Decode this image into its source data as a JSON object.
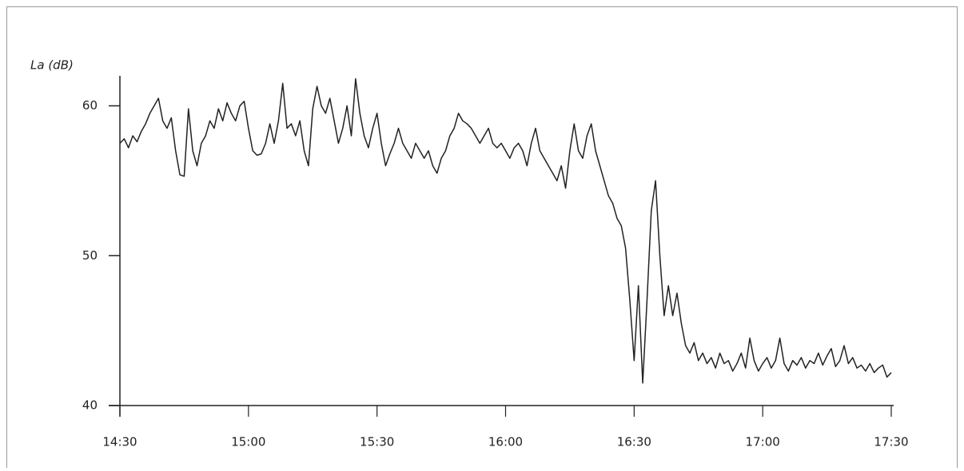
{
  "chart_data": {
    "type": "line",
    "ylabel": "La (dB)",
    "color": "#222222",
    "xlim": [
      870,
      1050
    ],
    "xticks": [
      {
        "value": 870,
        "label": "14:30"
      },
      {
        "value": 900,
        "label": "15:00"
      },
      {
        "value": 930,
        "label": "15:30"
      },
      {
        "value": 960,
        "label": "16:00"
      },
      {
        "value": 990,
        "label": "16:30"
      },
      {
        "value": 1020,
        "label": "17:00"
      },
      {
        "value": 1050,
        "label": "17:30"
      }
    ],
    "ylim": [
      40,
      62
    ],
    "yticks": [
      40,
      50,
      60
    ],
    "x": [
      870,
      871,
      872,
      873,
      874,
      875,
      876,
      877,
      878,
      879,
      880,
      881,
      882,
      883,
      884,
      885,
      886,
      887,
      888,
      889,
      890,
      891,
      892,
      893,
      894,
      895,
      896,
      897,
      898,
      899,
      900,
      901,
      902,
      903,
      904,
      905,
      906,
      907,
      908,
      909,
      910,
      911,
      912,
      913,
      914,
      915,
      916,
      917,
      918,
      919,
      920,
      921,
      922,
      923,
      924,
      925,
      926,
      927,
      928,
      929,
      930,
      931,
      932,
      933,
      934,
      935,
      936,
      937,
      938,
      939,
      940,
      941,
      942,
      943,
      944,
      945,
      946,
      947,
      948,
      949,
      950,
      951,
      952,
      953,
      954,
      955,
      956,
      957,
      958,
      959,
      960,
      961,
      962,
      963,
      964,
      965,
      966,
      967,
      968,
      969,
      970,
      971,
      972,
      973,
      974,
      975,
      976,
      977,
      978,
      979,
      980,
      981,
      982,
      983,
      984,
      985,
      986,
      987,
      988,
      989,
      990,
      991,
      992,
      993,
      994,
      995,
      996,
      997,
      998,
      999,
      1000,
      1001,
      1002,
      1003,
      1004,
      1005,
      1006,
      1007,
      1008,
      1009,
      1010,
      1011,
      1012,
      1013,
      1014,
      1015,
      1016,
      1017,
      1018,
      1019,
      1020,
      1021,
      1022,
      1023,
      1024,
      1025,
      1026,
      1027,
      1028,
      1029,
      1030,
      1031,
      1032,
      1033,
      1034,
      1035,
      1036,
      1037,
      1038,
      1039,
      1040,
      1041,
      1042,
      1043,
      1044,
      1045,
      1046,
      1047,
      1048,
      1049,
      1050
    ],
    "values": [
      57.5,
      57.8,
      57.2,
      58,
      57.6,
      58.3,
      58.8,
      59.5,
      60,
      60.5,
      59,
      58.5,
      59.2,
      57,
      55.4,
      55.3,
      59.8,
      57,
      56,
      57.5,
      58,
      59,
      58.5,
      59.8,
      59,
      60.2,
      59.5,
      59,
      60,
      60.3,
      58.5,
      57,
      56.7,
      56.8,
      57.5,
      58.8,
      57.5,
      59,
      61.5,
      58.5,
      58.8,
      58,
      59,
      57,
      56,
      59.8,
      61.3,
      60,
      59.5,
      60.5,
      59,
      57.5,
      58.5,
      60,
      58,
      61.8,
      59.5,
      58,
      57.2,
      58.5,
      59.5,
      57.5,
      56,
      56.8,
      57.5,
      58.5,
      57.5,
      57,
      56.5,
      57.5,
      57,
      56.5,
      57,
      56,
      55.5,
      56.5,
      57,
      58,
      58.5,
      59.5,
      59,
      58.8,
      58.5,
      58,
      57.5,
      58,
      58.5,
      57.5,
      57.2,
      57.5,
      57,
      56.5,
      57.2,
      57.5,
      57,
      56,
      57.5,
      58.5,
      57,
      56.5,
      56,
      55.5,
      55,
      56,
      54.5,
      57,
      58.8,
      57,
      56.5,
      58,
      58.8,
      57,
      56,
      55,
      54,
      53.5,
      52.5,
      52,
      50.5,
      47,
      43,
      48,
      41.5,
      47,
      53,
      55,
      50,
      46,
      48,
      46,
      47.5,
      45.5,
      44,
      43.5,
      44.2,
      43,
      43.5,
      42.8,
      43.2,
      42.5,
      43.5,
      42.8,
      43,
      42.3,
      42.8,
      43.5,
      42.5,
      44.5,
      43,
      42.3,
      42.8,
      43.2,
      42.5,
      43,
      44.5,
      42.8,
      42.3,
      43,
      42.7,
      43.2,
      42.5,
      43,
      42.8,
      43.5,
      42.7,
      43.3,
      43.8,
      42.6,
      43,
      44,
      42.8,
      43.2,
      42.5,
      42.7,
      42.3,
      42.8,
      42.2,
      42.5,
      42.7,
      41.9,
      42.2
    ]
  }
}
